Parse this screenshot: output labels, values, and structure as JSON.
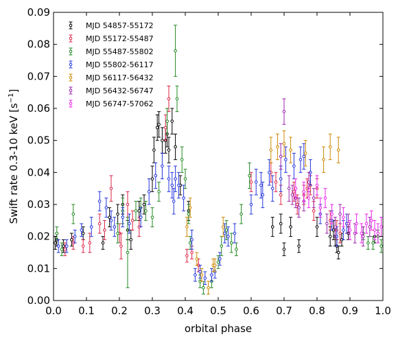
{
  "chart_data": {
    "type": "scatter",
    "xlabel": "orbital phase",
    "ylabel": "Swift rate 0.3-10 keV [s",
    "ylabel_sup": "−1",
    "ylabel_close": "]",
    "xlim": [
      0.0,
      1.0
    ],
    "ylim": [
      0.0,
      0.09
    ],
    "xticks": [
      "0.0",
      "0.1",
      "0.2",
      "0.3",
      "0.4",
      "0.5",
      "0.6",
      "0.7",
      "0.8",
      "0.9",
      "1.0"
    ],
    "yticks": [
      "0.00",
      "0.01",
      "0.02",
      "0.03",
      "0.04",
      "0.05",
      "0.06",
      "0.07",
      "0.08",
      "0.09"
    ],
    "legend_position": "top-left",
    "series": [
      {
        "name": "MJD 54857-55172",
        "color": "#000000",
        "points": [
          [
            0.005,
            0.018,
            0.002
          ],
          [
            0.01,
            0.019,
            0.002
          ],
          [
            0.03,
            0.017,
            0.002
          ],
          [
            0.055,
            0.019,
            0.002
          ],
          [
            0.09,
            0.021,
            0.002
          ],
          [
            0.15,
            0.018,
            0.002
          ],
          [
            0.17,
            0.026,
            0.003
          ],
          [
            0.195,
            0.027,
            0.003
          ],
          [
            0.21,
            0.03,
            0.003
          ],
          [
            0.225,
            0.022,
            0.003
          ],
          [
            0.235,
            0.019,
            0.003
          ],
          [
            0.26,
            0.028,
            0.003
          ],
          [
            0.275,
            0.03,
            0.003
          ],
          [
            0.3,
            0.038,
            0.004
          ],
          [
            0.305,
            0.047,
            0.004
          ],
          [
            0.315,
            0.054,
            0.004
          ],
          [
            0.32,
            0.055,
            0.004
          ],
          [
            0.33,
            0.05,
            0.004
          ],
          [
            0.34,
            0.05,
            0.004
          ],
          [
            0.345,
            0.052,
            0.004
          ],
          [
            0.35,
            0.047,
            0.004
          ],
          [
            0.36,
            0.056,
            0.004
          ],
          [
            0.37,
            0.048,
            0.004
          ],
          [
            0.385,
            0.036,
            0.003
          ],
          [
            0.41,
            0.028,
            0.003
          ],
          [
            0.665,
            0.023,
            0.003
          ],
          [
            0.69,
            0.024,
            0.003
          ],
          [
            0.7,
            0.016,
            0.002
          ],
          [
            0.72,
            0.023,
            0.003
          ],
          [
            0.745,
            0.017,
            0.002
          ],
          [
            0.8,
            0.023,
            0.003
          ],
          [
            0.84,
            0.02,
            0.003
          ],
          [
            0.85,
            0.022,
            0.003
          ],
          [
            0.855,
            0.02,
            0.003
          ],
          [
            0.86,
            0.017,
            0.002
          ],
          [
            0.865,
            0.015,
            0.002
          ],
          [
            0.875,
            0.019,
            0.002
          ],
          [
            0.895,
            0.021,
            0.002
          ],
          [
            0.975,
            0.02,
            0.002
          ]
        ]
      },
      {
        "name": "MJD 55172-55487",
        "color": "#dd2244",
        "points": [
          [
            0.035,
            0.016,
            0.002
          ],
          [
            0.06,
            0.018,
            0.002
          ],
          [
            0.09,
            0.017,
            0.002
          ],
          [
            0.11,
            0.018,
            0.003
          ],
          [
            0.14,
            0.024,
            0.003
          ],
          [
            0.155,
            0.022,
            0.003
          ],
          [
            0.175,
            0.035,
            0.004
          ],
          [
            0.2,
            0.021,
            0.003
          ],
          [
            0.205,
            0.017,
            0.004
          ],
          [
            0.225,
            0.03,
            0.004
          ],
          [
            0.24,
            0.025,
            0.003
          ],
          [
            0.26,
            0.023,
            0.003
          ],
          [
            0.34,
            0.054,
            0.004
          ],
          [
            0.35,
            0.063,
            0.004
          ],
          [
            0.405,
            0.014,
            0.002
          ],
          [
            0.42,
            0.015,
            0.002
          ],
          [
            0.44,
            0.011,
            0.002
          ],
          [
            0.6,
            0.037,
            0.003
          ],
          [
            0.66,
            0.04,
            0.003
          ],
          [
            0.675,
            0.037,
            0.003
          ],
          [
            0.69,
            0.033,
            0.003
          ],
          [
            0.73,
            0.034,
            0.003
          ],
          [
            0.74,
            0.03,
            0.003
          ],
          [
            0.76,
            0.033,
            0.003
          ],
          [
            0.77,
            0.035,
            0.003
          ],
          [
            0.78,
            0.036,
            0.003
          ],
          [
            0.79,
            0.028,
            0.003
          ],
          [
            0.8,
            0.035,
            0.003
          ],
          [
            0.84,
            0.025,
            0.003
          ],
          [
            0.86,
            0.022,
            0.003
          ],
          [
            0.87,
            0.021,
            0.003
          ]
        ]
      },
      {
        "name": "MJD 55487-55802",
        "color": "#228822",
        "points": [
          [
            0.01,
            0.021,
            0.002
          ],
          [
            0.025,
            0.016,
            0.002
          ],
          [
            0.06,
            0.027,
            0.003
          ],
          [
            0.195,
            0.021,
            0.003
          ],
          [
            0.21,
            0.028,
            0.004
          ],
          [
            0.225,
            0.015,
            0.011
          ],
          [
            0.25,
            0.028,
            0.003
          ],
          [
            0.265,
            0.029,
            0.003
          ],
          [
            0.28,
            0.028,
            0.003
          ],
          [
            0.3,
            0.026,
            0.003
          ],
          [
            0.32,
            0.034,
            0.003
          ],
          [
            0.345,
            0.056,
            0.004
          ],
          [
            0.37,
            0.078,
            0.008
          ],
          [
            0.375,
            0.063,
            0.004
          ],
          [
            0.39,
            0.044,
            0.004
          ],
          [
            0.4,
            0.038,
            0.003
          ],
          [
            0.41,
            0.027,
            0.003
          ],
          [
            0.415,
            0.018,
            0.002
          ],
          [
            0.445,
            0.006,
            0.002
          ],
          [
            0.455,
            0.004,
            0.002
          ],
          [
            0.48,
            0.006,
            0.002
          ],
          [
            0.5,
            0.012,
            0.002
          ],
          [
            0.51,
            0.017,
            0.003
          ],
          [
            0.525,
            0.022,
            0.003
          ],
          [
            0.54,
            0.018,
            0.003
          ],
          [
            0.555,
            0.016,
            0.002
          ],
          [
            0.57,
            0.027,
            0.003
          ],
          [
            0.595,
            0.039,
            0.004
          ],
          [
            0.94,
            0.021,
            0.002
          ],
          [
            0.955,
            0.018,
            0.002
          ],
          [
            0.97,
            0.018,
            0.002
          ],
          [
            0.985,
            0.02,
            0.002
          ],
          [
            0.995,
            0.017,
            0.002
          ]
        ]
      },
      {
        "name": "MJD 55802-56117",
        "color": "#2233dd",
        "points": [
          [
            0.015,
            0.017,
            0.002
          ],
          [
            0.04,
            0.017,
            0.002
          ],
          [
            0.065,
            0.02,
            0.002
          ],
          [
            0.085,
            0.022,
            0.002
          ],
          [
            0.115,
            0.023,
            0.003
          ],
          [
            0.14,
            0.031,
            0.003
          ],
          [
            0.16,
            0.029,
            0.003
          ],
          [
            0.175,
            0.025,
            0.003
          ],
          [
            0.185,
            0.023,
            0.003
          ],
          [
            0.21,
            0.026,
            0.003
          ],
          [
            0.23,
            0.024,
            0.003
          ],
          [
            0.265,
            0.026,
            0.003
          ],
          [
            0.29,
            0.034,
            0.004
          ],
          [
            0.31,
            0.039,
            0.004
          ],
          [
            0.33,
            0.042,
            0.004
          ],
          [
            0.35,
            0.038,
            0.004
          ],
          [
            0.36,
            0.036,
            0.004
          ],
          [
            0.365,
            0.031,
            0.004
          ],
          [
            0.37,
            0.038,
            0.004
          ],
          [
            0.38,
            0.036,
            0.004
          ],
          [
            0.395,
            0.032,
            0.004
          ],
          [
            0.42,
            0.019,
            0.003
          ],
          [
            0.43,
            0.008,
            0.002
          ],
          [
            0.445,
            0.009,
            0.002
          ],
          [
            0.46,
            0.007,
            0.002
          ],
          [
            0.48,
            0.008,
            0.002
          ],
          [
            0.49,
            0.009,
            0.002
          ],
          [
            0.505,
            0.013,
            0.002
          ],
          [
            0.52,
            0.021,
            0.003
          ],
          [
            0.53,
            0.02,
            0.003
          ],
          [
            0.55,
            0.021,
            0.003
          ],
          [
            0.6,
            0.03,
            0.003
          ],
          [
            0.615,
            0.037,
            0.004
          ],
          [
            0.63,
            0.036,
            0.004
          ],
          [
            0.635,
            0.033,
            0.004
          ],
          [
            0.655,
            0.04,
            0.004
          ],
          [
            0.665,
            0.035,
            0.004
          ],
          [
            0.69,
            0.038,
            0.004
          ],
          [
            0.705,
            0.044,
            0.004
          ],
          [
            0.73,
            0.042,
            0.004
          ],
          [
            0.75,
            0.044,
            0.004
          ],
          [
            0.76,
            0.045,
            0.004
          ],
          [
            0.78,
            0.04,
            0.004
          ],
          [
            0.81,
            0.027,
            0.003
          ],
          [
            0.845,
            0.025,
            0.003
          ],
          [
            0.86,
            0.02,
            0.003
          ],
          [
            0.88,
            0.022,
            0.003
          ],
          [
            0.89,
            0.024,
            0.003
          ]
        ]
      },
      {
        "name": "MJD 56117-56432",
        "color": "#cc8800",
        "points": [
          [
            0.405,
            0.023,
            0.003
          ],
          [
            0.415,
            0.029,
            0.003
          ],
          [
            0.435,
            0.013,
            0.002
          ],
          [
            0.45,
            0.008,
            0.002
          ],
          [
            0.47,
            0.004,
            0.002
          ],
          [
            0.485,
            0.011,
            0.002
          ],
          [
            0.49,
            0.011,
            0.002
          ],
          [
            0.515,
            0.023,
            0.003
          ],
          [
            0.66,
            0.047,
            0.004
          ],
          [
            0.68,
            0.048,
            0.004
          ],
          [
            0.7,
            0.049,
            0.004
          ],
          [
            0.72,
            0.047,
            0.004
          ],
          [
            0.765,
            0.046,
            0.004
          ],
          [
            0.82,
            0.044,
            0.004
          ],
          [
            0.84,
            0.048,
            0.004
          ],
          [
            0.865,
            0.047,
            0.004
          ]
        ]
      },
      {
        "name": "MJD 56432-56747",
        "color": "#9922aa",
        "points": [
          [
            0.69,
            0.045,
            0.004
          ],
          [
            0.7,
            0.059,
            0.004
          ],
          [
            0.715,
            0.035,
            0.004
          ],
          [
            0.725,
            0.033,
            0.003
          ],
          [
            0.735,
            0.032,
            0.003
          ],
          [
            0.745,
            0.029,
            0.003
          ],
          [
            0.76,
            0.031,
            0.003
          ],
          [
            0.775,
            0.037,
            0.003
          ],
          [
            0.79,
            0.032,
            0.003
          ],
          [
            0.83,
            0.024,
            0.003
          ],
          [
            0.855,
            0.023,
            0.003
          ],
          [
            0.87,
            0.027,
            0.003
          ],
          [
            0.895,
            0.024,
            0.003
          ],
          [
            0.915,
            0.021,
            0.003
          ],
          [
            0.94,
            0.02,
            0.003
          ],
          [
            0.96,
            0.023,
            0.003
          ]
        ]
      },
      {
        "name": "MJD 56747-57062",
        "color": "#ee22ee",
        "points": [
          [
            0.735,
            0.035,
            0.003
          ],
          [
            0.76,
            0.034,
            0.003
          ],
          [
            0.775,
            0.032,
            0.003
          ],
          [
            0.8,
            0.036,
            0.003
          ],
          [
            0.81,
            0.029,
            0.003
          ],
          [
            0.825,
            0.032,
            0.003
          ],
          [
            0.845,
            0.027,
            0.003
          ],
          [
            0.88,
            0.026,
            0.003
          ],
          [
            0.9,
            0.022,
            0.003
          ],
          [
            0.92,
            0.024,
            0.003
          ],
          [
            0.935,
            0.021,
            0.003
          ],
          [
            0.95,
            0.024,
            0.003
          ],
          [
            0.965,
            0.025,
            0.003
          ],
          [
            0.975,
            0.022,
            0.003
          ],
          [
            0.985,
            0.021,
            0.003
          ],
          [
            0.995,
            0.023,
            0.003
          ]
        ]
      }
    ]
  }
}
